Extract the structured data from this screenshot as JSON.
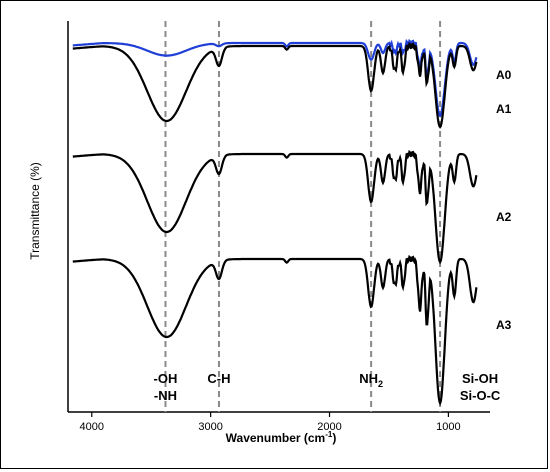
{
  "chart_data": {
    "type": "line",
    "title": "",
    "xlabel": "Wavenumber (cm",
    "xlabel_sup": "-1",
    "xlabel_end": ")",
    "ylabel": "Transmittance (%)",
    "xlim": [
      4200,
      650
    ],
    "x_reversed": true,
    "xticks": [
      4000,
      3000,
      2000,
      1000
    ],
    "grid": false,
    "series": [
      {
        "name": "A0",
        "color": "#1f3fd6"
      },
      {
        "name": "A1",
        "color": "#000000"
      },
      {
        "name": "A2",
        "color": "#000000"
      },
      {
        "name": "A3",
        "color": "#000000"
      }
    ],
    "reference_lines": [
      3380,
      2930,
      1650,
      1070
    ],
    "annotations": [
      {
        "line1": "-OH",
        "line2": "-NH"
      },
      {
        "line1": "C-H",
        "line2": ""
      },
      {
        "line1": "NH",
        "sub": "2",
        "line2": ""
      },
      {
        "line1": "Si-OH",
        "line2": "Si-O-C"
      }
    ]
  }
}
